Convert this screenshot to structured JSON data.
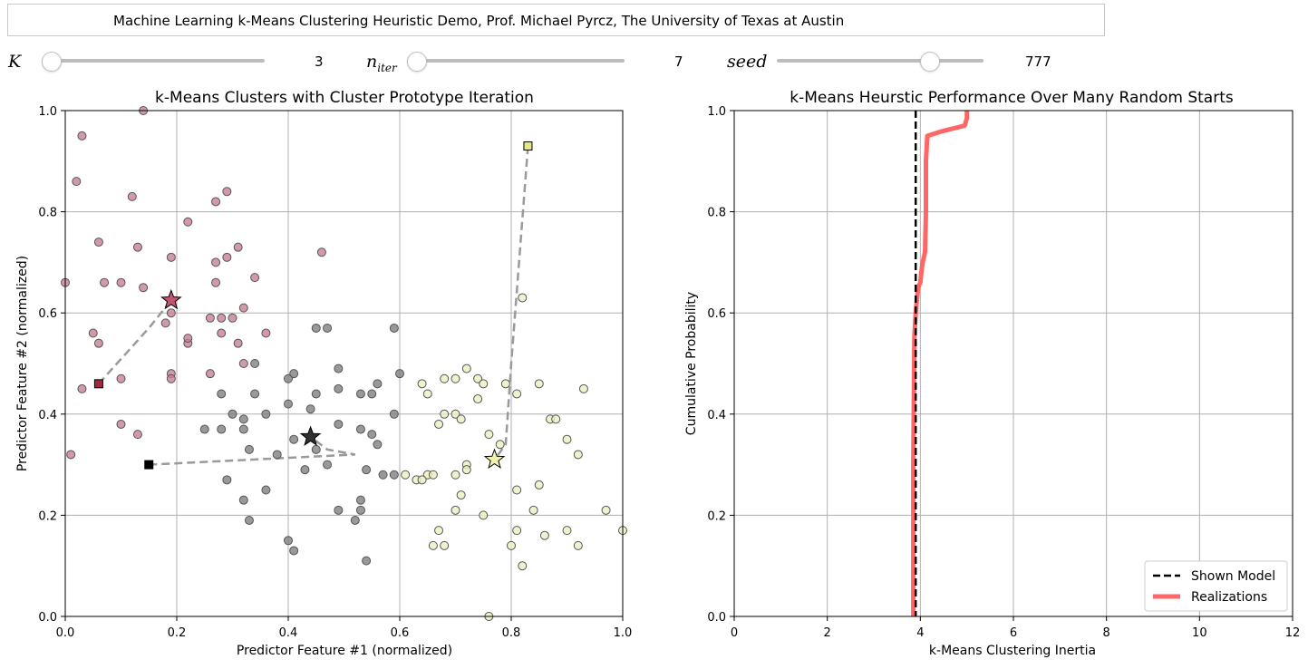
{
  "header": {
    "title": "Machine Learning k-Means Clustering Heuristic Demo, Prof. Michael Pyrcz, The University of Texas at Austin"
  },
  "controls": {
    "k": {
      "label": "K",
      "value": "3",
      "level": 0.0
    },
    "niter": {
      "label": "n",
      "sub": "iter",
      "value": "7",
      "level": 0.0
    },
    "seed": {
      "label": "seed",
      "value": "777",
      "level": 0.76
    }
  },
  "colors": {
    "cluster_pink": "#c77f92",
    "cluster_gray": "#808080",
    "cluster_yellow": "#ecefc0",
    "realizations": "#ff6666",
    "shown_model": "#000000",
    "grid": "#b0b0b0",
    "path": "#9a9a9a"
  },
  "chart_data": [
    {
      "type": "scatter",
      "title": "k-Means Clusters with Cluster Prototype Iteration",
      "xlabel": "Predictor Feature #1 (normalized)",
      "ylabel": "Predictor Feature #2 (normalized)",
      "xlim": [
        0,
        1
      ],
      "ylim": [
        0,
        1
      ],
      "xticks": [
        "0.0",
        "0.2",
        "0.4",
        "0.6",
        "0.8",
        "1.0"
      ],
      "yticks": [
        "0.0",
        "0.2",
        "0.4",
        "0.6",
        "0.8",
        "1.0"
      ],
      "grid": true,
      "series": [
        {
          "cluster": "pink",
          "points": [
            [
              0.03,
              0.95
            ],
            [
              0.02,
              0.86
            ],
            [
              0.14,
              1.0
            ],
            [
              0.12,
              0.83
            ],
            [
              0.29,
              0.84
            ],
            [
              0.27,
              0.82
            ],
            [
              0.22,
              0.78
            ],
            [
              0.06,
              0.74
            ],
            [
              0.13,
              0.73
            ],
            [
              0.31,
              0.73
            ],
            [
              0.46,
              0.72
            ],
            [
              0.19,
              0.71
            ],
            [
              0.27,
              0.7
            ],
            [
              0.29,
              0.71
            ],
            [
              0.07,
              0.66
            ],
            [
              0.1,
              0.66
            ],
            [
              0.14,
              0.65
            ],
            [
              0.34,
              0.67
            ],
            [
              0.27,
              0.66
            ],
            [
              0.0,
              0.66
            ],
            [
              0.32,
              0.61
            ],
            [
              0.19,
              0.6
            ],
            [
              0.18,
              0.58
            ],
            [
              0.26,
              0.59
            ],
            [
              0.28,
              0.59
            ],
            [
              0.3,
              0.59
            ],
            [
              0.28,
              0.56
            ],
            [
              0.05,
              0.56
            ],
            [
              0.06,
              0.54
            ],
            [
              0.22,
              0.54
            ],
            [
              0.22,
              0.55
            ],
            [
              0.31,
              0.54
            ],
            [
              0.36,
              0.56
            ],
            [
              0.32,
              0.5
            ],
            [
              0.19,
              0.48
            ],
            [
              0.26,
              0.48
            ],
            [
              0.19,
              0.47
            ],
            [
              0.1,
              0.47
            ],
            [
              0.03,
              0.45
            ],
            [
              0.01,
              0.32
            ],
            [
              0.1,
              0.38
            ],
            [
              0.13,
              0.36
            ]
          ]
        },
        {
          "cluster": "gray",
          "points": [
            [
              0.45,
              0.57
            ],
            [
              0.47,
              0.57
            ],
            [
              0.59,
              0.57
            ],
            [
              0.34,
              0.5
            ],
            [
              0.41,
              0.48
            ],
            [
              0.4,
              0.47
            ],
            [
              0.49,
              0.49
            ],
            [
              0.6,
              0.48
            ],
            [
              0.56,
              0.46
            ],
            [
              0.49,
              0.45
            ],
            [
              0.45,
              0.44
            ],
            [
              0.28,
              0.44
            ],
            [
              0.34,
              0.44
            ],
            [
              0.53,
              0.44
            ],
            [
              0.55,
              0.44
            ],
            [
              0.4,
              0.42
            ],
            [
              0.44,
              0.41
            ],
            [
              0.3,
              0.4
            ],
            [
              0.36,
              0.4
            ],
            [
              0.32,
              0.39
            ],
            [
              0.59,
              0.4
            ],
            [
              0.49,
              0.38
            ],
            [
              0.25,
              0.37
            ],
            [
              0.28,
              0.37
            ],
            [
              0.32,
              0.37
            ],
            [
              0.53,
              0.37
            ],
            [
              0.41,
              0.35
            ],
            [
              0.55,
              0.36
            ],
            [
              0.56,
              0.34
            ],
            [
              0.33,
              0.33
            ],
            [
              0.38,
              0.32
            ],
            [
              0.45,
              0.33
            ],
            [
              0.43,
              0.29
            ],
            [
              0.47,
              0.3
            ],
            [
              0.54,
              0.29
            ],
            [
              0.57,
              0.28
            ],
            [
              0.59,
              0.28
            ],
            [
              0.29,
              0.27
            ],
            [
              0.32,
              0.23
            ],
            [
              0.36,
              0.25
            ],
            [
              0.53,
              0.23
            ],
            [
              0.49,
              0.21
            ],
            [
              0.53,
              0.21
            ],
            [
              0.52,
              0.19
            ],
            [
              0.33,
              0.19
            ],
            [
              0.4,
              0.15
            ],
            [
              0.41,
              0.13
            ],
            [
              0.54,
              0.11
            ]
          ]
        },
        {
          "cluster": "yellow",
          "points": [
            [
              0.82,
              0.63
            ],
            [
              0.72,
              0.49
            ],
            [
              0.68,
              0.47
            ],
            [
              0.7,
              0.47
            ],
            [
              0.74,
              0.47
            ],
            [
              0.64,
              0.46
            ],
            [
              0.75,
              0.46
            ],
            [
              0.79,
              0.46
            ],
            [
              0.85,
              0.46
            ],
            [
              0.93,
              0.45
            ],
            [
              0.65,
              0.44
            ],
            [
              0.74,
              0.43
            ],
            [
              0.81,
              0.44
            ],
            [
              0.68,
              0.4
            ],
            [
              0.7,
              0.4
            ],
            [
              0.71,
              0.39
            ],
            [
              0.87,
              0.39
            ],
            [
              0.88,
              0.39
            ],
            [
              0.67,
              0.38
            ],
            [
              0.76,
              0.36
            ],
            [
              0.78,
              0.34
            ],
            [
              0.9,
              0.35
            ],
            [
              0.92,
              0.32
            ],
            [
              0.72,
              0.3
            ],
            [
              0.72,
              0.29
            ],
            [
              0.7,
              0.28
            ],
            [
              0.61,
              0.28
            ],
            [
              0.63,
              0.27
            ],
            [
              0.65,
              0.28
            ],
            [
              0.66,
              0.28
            ],
            [
              0.64,
              0.27
            ],
            [
              0.71,
              0.24
            ],
            [
              0.81,
              0.25
            ],
            [
              0.85,
              0.26
            ],
            [
              0.84,
              0.21
            ],
            [
              0.7,
              0.21
            ],
            [
              0.97,
              0.21
            ],
            [
              0.75,
              0.2
            ],
            [
              0.67,
              0.17
            ],
            [
              0.81,
              0.17
            ],
            [
              0.9,
              0.17
            ],
            [
              1.0,
              0.17
            ],
            [
              0.86,
              0.16
            ],
            [
              0.66,
              0.14
            ],
            [
              0.68,
              0.14
            ],
            [
              0.8,
              0.14
            ],
            [
              0.92,
              0.14
            ],
            [
              0.82,
              0.1
            ],
            [
              0.76,
              0.0
            ]
          ]
        }
      ],
      "prototype_paths": [
        {
          "cluster": "pink",
          "start": [
            0.06,
            0.46
          ],
          "path": [
            [
              0.06,
              0.46
            ],
            [
              0.15,
              0.57
            ],
            [
              0.19,
              0.625
            ]
          ],
          "final": [
            0.19,
            0.625
          ]
        },
        {
          "cluster": "gray",
          "start": [
            0.15,
            0.3
          ],
          "path": [
            [
              0.15,
              0.3
            ],
            [
              0.52,
              0.32
            ],
            [
              0.47,
              0.33
            ],
            [
              0.44,
              0.355
            ]
          ],
          "final": [
            0.44,
            0.355
          ]
        },
        {
          "cluster": "yellow",
          "start": [
            0.83,
            0.93
          ],
          "path": [
            [
              0.83,
              0.93
            ],
            [
              0.8,
              0.5
            ],
            [
              0.79,
              0.34
            ],
            [
              0.77,
              0.31
            ]
          ],
          "final": [
            0.77,
            0.31
          ]
        }
      ]
    },
    {
      "type": "line",
      "title": "k-Means Heurstic Performance Over Many Random Starts",
      "xlabel": "k-Means Clustering Inertia",
      "ylabel": "Cumulative Probability",
      "xlim": [
        0,
        12
      ],
      "ylim": [
        0,
        1
      ],
      "xticks": [
        "0",
        "2",
        "4",
        "6",
        "8",
        "10",
        "12"
      ],
      "yticks": [
        "0.0",
        "0.2",
        "0.4",
        "0.6",
        "0.8",
        "1.0"
      ],
      "grid": true,
      "legend_position": "bottom-right",
      "shown_model": {
        "name": "Shown Model",
        "x": 3.9
      },
      "series": [
        {
          "name": "Realizations",
          "x": [
            3.85,
            3.85,
            3.87,
            3.9,
            3.95,
            4.0,
            4.02,
            4.05,
            4.1,
            4.12,
            4.12,
            4.15,
            4.5,
            4.95,
            5.0,
            5.0
          ],
          "y": [
            0.0,
            0.3,
            0.55,
            0.6,
            0.65,
            0.66,
            0.68,
            0.7,
            0.72,
            0.8,
            0.9,
            0.95,
            0.96,
            0.97,
            0.985,
            1.0
          ]
        }
      ],
      "legend": [
        "Shown Model",
        "Realizations"
      ]
    }
  ]
}
